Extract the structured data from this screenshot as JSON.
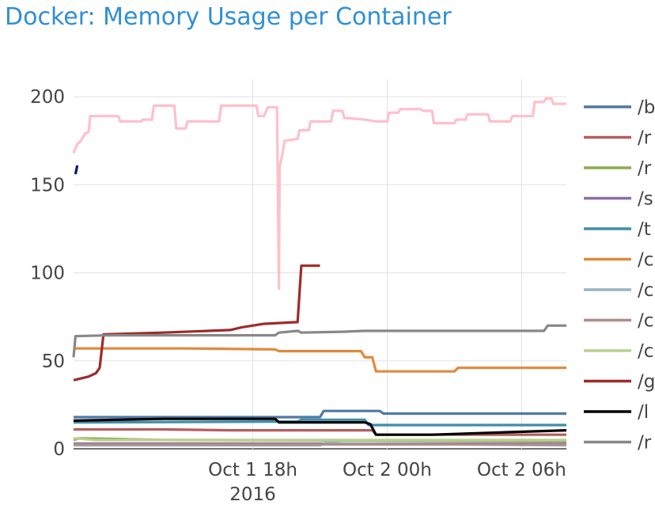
{
  "chart_data": {
    "type": "line",
    "title": "Docker: Memory Usage per Container",
    "xlabel": "",
    "ylabel": "",
    "x_range": [
      "2016-10-01T10:00",
      "2016-10-02T08:00"
    ],
    "ylim": [
      0,
      210
    ],
    "y_ticks": [
      0,
      50,
      100,
      150,
      200
    ],
    "x_ticks": [
      {
        "time": "2016-10-01T18:00",
        "label": "Oct 1 18h",
        "sublabel": "2016"
      },
      {
        "time": "2016-10-02T00:00",
        "label": "Oct 2 00h",
        "sublabel": ""
      },
      {
        "time": "2016-10-02T06:00",
        "label": "Oct 2 06h",
        "sublabel": ""
      }
    ],
    "grid": true,
    "legend_position": "right",
    "series": [
      {
        "name": "/b",
        "color": "#4e79a7",
        "points": [
          [
            "2016-10-01T10:00",
            18
          ],
          [
            "2016-10-01T15:00",
            18
          ],
          [
            "2016-10-01T21:00",
            18
          ],
          [
            "2016-10-01T21:10",
            21.5
          ],
          [
            "2016-10-01T23:40",
            21.5
          ],
          [
            "2016-10-01T23:50",
            20
          ],
          [
            "2016-10-02T08:00",
            20
          ]
        ]
      },
      {
        "name": "/r",
        "color": "#b55d5d",
        "points": [
          [
            "2016-10-01T10:00",
            11
          ],
          [
            "2016-10-01T14:00",
            11
          ],
          [
            "2016-10-01T17:00",
            10.5
          ],
          [
            "2016-10-01T23:20",
            10.5
          ],
          [
            "2016-10-01T23:30",
            8
          ],
          [
            "2016-10-02T08:00",
            8
          ]
        ]
      },
      {
        "name": "/r",
        "color": "#8aab4e",
        "points": [
          [
            "2016-10-01T10:00",
            5
          ],
          [
            "2016-10-01T10:15",
            6
          ],
          [
            "2016-10-01T14:00",
            5
          ],
          [
            "2016-10-02T08:00",
            4.5
          ]
        ]
      },
      {
        "name": "/s",
        "color": "#8b6fa8",
        "points": [
          [
            "2016-10-01T10:00",
            3
          ],
          [
            "2016-10-02T08:00",
            3
          ]
        ]
      },
      {
        "name": "/t",
        "color": "#3e8ea8",
        "points": [
          [
            "2016-10-01T10:00",
            15
          ],
          [
            "2016-10-01T20:00",
            15.5
          ],
          [
            "2016-10-01T20:10",
            16.5
          ],
          [
            "2016-10-01T23:00",
            16.5
          ],
          [
            "2016-10-01T23:10",
            13.5
          ],
          [
            "2016-10-02T08:00",
            13.5
          ]
        ]
      },
      {
        "name": "/c",
        "color": "#e08a3c",
        "points": [
          [
            "2016-10-01T10:00",
            57
          ],
          [
            "2016-10-01T15:00",
            57
          ],
          [
            "2016-10-01T19:00",
            56.5
          ],
          [
            "2016-10-01T19:10",
            55.5
          ],
          [
            "2016-10-01T22:50",
            55.5
          ],
          [
            "2016-10-01T23:00",
            52
          ],
          [
            "2016-10-01T23:20",
            52
          ],
          [
            "2016-10-01T23:30",
            44
          ],
          [
            "2016-10-02T03:00",
            44
          ],
          [
            "2016-10-02T03:10",
            46
          ],
          [
            "2016-10-02T08:00",
            46
          ]
        ]
      },
      {
        "name": "/c",
        "color": "#99b3c6",
        "points": [
          [
            "2016-10-01T10:00",
            2
          ],
          [
            "2016-10-01T21:00",
            2
          ],
          [
            "2016-10-01T21:20",
            4
          ],
          [
            "2016-10-01T22:00",
            3
          ],
          [
            "2016-10-02T08:00",
            2
          ]
        ]
      },
      {
        "name": "/c",
        "color": "#b08b8b",
        "points": [
          [
            "2016-10-01T10:00",
            2.5
          ],
          [
            "2016-10-02T08:00",
            2.5
          ]
        ]
      },
      {
        "name": "/c",
        "color": "#b7d28f",
        "points": [
          [
            "2016-10-01T10:00",
            6
          ],
          [
            "2016-10-01T11:00",
            5
          ],
          [
            "2016-10-02T08:00",
            5
          ]
        ]
      },
      {
        "name": "/g",
        "color": "#9e2a2b",
        "points": [
          [
            "2016-10-01T10:00",
            39
          ],
          [
            "2016-10-01T10:40",
            41
          ],
          [
            "2016-10-01T11:00",
            43
          ],
          [
            "2016-10-01T11:10",
            46
          ],
          [
            "2016-10-01T11:20",
            65
          ],
          [
            "2016-10-01T14:00",
            66
          ],
          [
            "2016-10-01T17:00",
            67.5
          ],
          [
            "2016-10-01T17:30",
            69
          ],
          [
            "2016-10-01T18:30",
            71
          ],
          [
            "2016-10-01T20:00",
            72
          ],
          [
            "2016-10-01T20:10",
            104
          ],
          [
            "2016-10-01T21:00",
            104
          ]
        ]
      },
      {
        "name": "/l",
        "color": "#000000",
        "points": [
          [
            "2016-10-01T10:00",
            16
          ],
          [
            "2016-10-01T14:00",
            17
          ],
          [
            "2016-10-01T19:00",
            17
          ],
          [
            "2016-10-01T19:10",
            15
          ],
          [
            "2016-10-01T23:00",
            15
          ],
          [
            "2016-10-01T23:15",
            14
          ],
          [
            "2016-10-01T23:30",
            8
          ],
          [
            "2016-10-02T02:00",
            8
          ],
          [
            "2016-10-02T08:00",
            10.5
          ]
        ]
      },
      {
        "name": "/r",
        "color": "#888888",
        "points": [
          [
            "2016-10-01T10:00",
            52
          ],
          [
            "2016-10-01T10:05",
            64
          ],
          [
            "2016-10-01T11:30",
            64.5
          ],
          [
            "2016-10-01T19:00",
            64.5
          ],
          [
            "2016-10-01T19:10",
            66
          ],
          [
            "2016-10-01T20:00",
            67
          ],
          [
            "2016-10-01T20:10",
            66
          ],
          [
            "2016-10-01T22:00",
            66.5
          ],
          [
            "2016-10-01T23:00",
            67
          ],
          [
            "2016-10-02T07:00",
            67
          ],
          [
            "2016-10-02T07:10",
            70
          ],
          [
            "2016-10-02T08:00",
            70
          ]
        ]
      },
      {
        "name": "",
        "color": "#ffc0cb",
        "points": [
          [
            "2016-10-01T10:00",
            168
          ],
          [
            "2016-10-01T10:10",
            173
          ],
          [
            "2016-10-01T10:20",
            175
          ],
          [
            "2016-10-01T10:30",
            179
          ],
          [
            "2016-10-01T10:40",
            180
          ],
          [
            "2016-10-01T10:45",
            189
          ],
          [
            "2016-10-01T12:00",
            189
          ],
          [
            "2016-10-01T12:05",
            186
          ],
          [
            "2016-10-01T13:00",
            186
          ],
          [
            "2016-10-01T13:05",
            187
          ],
          [
            "2016-10-01T13:30",
            187
          ],
          [
            "2016-10-01T13:35",
            195
          ],
          [
            "2016-10-01T14:30",
            195
          ],
          [
            "2016-10-01T14:35",
            182
          ],
          [
            "2016-10-01T15:00",
            182
          ],
          [
            "2016-10-01T15:05",
            186
          ],
          [
            "2016-10-01T16:30",
            186
          ],
          [
            "2016-10-01T16:35",
            195
          ],
          [
            "2016-10-01T18:10",
            195
          ],
          [
            "2016-10-01T18:15",
            189
          ],
          [
            "2016-10-01T18:30",
            189
          ],
          [
            "2016-10-01T18:40",
            194
          ],
          [
            "2016-10-01T19:05",
            194
          ],
          [
            "2016-10-01T19:10",
            91
          ],
          [
            "2016-10-01T19:12",
            160
          ],
          [
            "2016-10-01T19:20",
            168
          ],
          [
            "2016-10-01T19:25",
            175
          ],
          [
            "2016-10-01T20:00",
            176
          ],
          [
            "2016-10-01T20:05",
            181
          ],
          [
            "2016-10-01T20:30",
            181
          ],
          [
            "2016-10-01T20:35",
            186
          ],
          [
            "2016-10-01T21:30",
            186
          ],
          [
            "2016-10-01T21:35",
            192
          ],
          [
            "2016-10-01T22:00",
            192
          ],
          [
            "2016-10-01T22:05",
            188
          ],
          [
            "2016-10-01T23:00",
            187
          ],
          [
            "2016-10-01T23:30",
            186
          ],
          [
            "2016-10-02T00:00",
            186
          ],
          [
            "2016-10-02T00:05",
            191
          ],
          [
            "2016-10-02T00:30",
            191
          ],
          [
            "2016-10-02T00:35",
            193
          ],
          [
            "2016-10-02T01:30",
            193
          ],
          [
            "2016-10-02T01:35",
            192
          ],
          [
            "2016-10-02T02:00",
            192
          ],
          [
            "2016-10-02T02:05",
            185
          ],
          [
            "2016-10-02T03:00",
            185
          ],
          [
            "2016-10-02T03:05",
            187
          ],
          [
            "2016-10-02T03:30",
            187
          ],
          [
            "2016-10-02T03:35",
            190
          ],
          [
            "2016-10-02T04:30",
            190
          ],
          [
            "2016-10-02T04:35",
            186
          ],
          [
            "2016-10-02T05:30",
            186
          ],
          [
            "2016-10-02T05:35",
            189
          ],
          [
            "2016-10-02T06:30",
            189
          ],
          [
            "2016-10-02T06:35",
            197
          ],
          [
            "2016-10-02T07:00",
            197
          ],
          [
            "2016-10-02T07:05",
            199
          ],
          [
            "2016-10-02T07:20",
            199
          ],
          [
            "2016-10-02T07:25",
            196
          ],
          [
            "2016-10-02T08:00",
            196
          ]
        ]
      },
      {
        "name": "",
        "color": "#0b1a6e",
        "points": [
          [
            "2016-10-01T10:05",
            156
          ],
          [
            "2016-10-01T10:10",
            161
          ]
        ]
      }
    ]
  }
}
